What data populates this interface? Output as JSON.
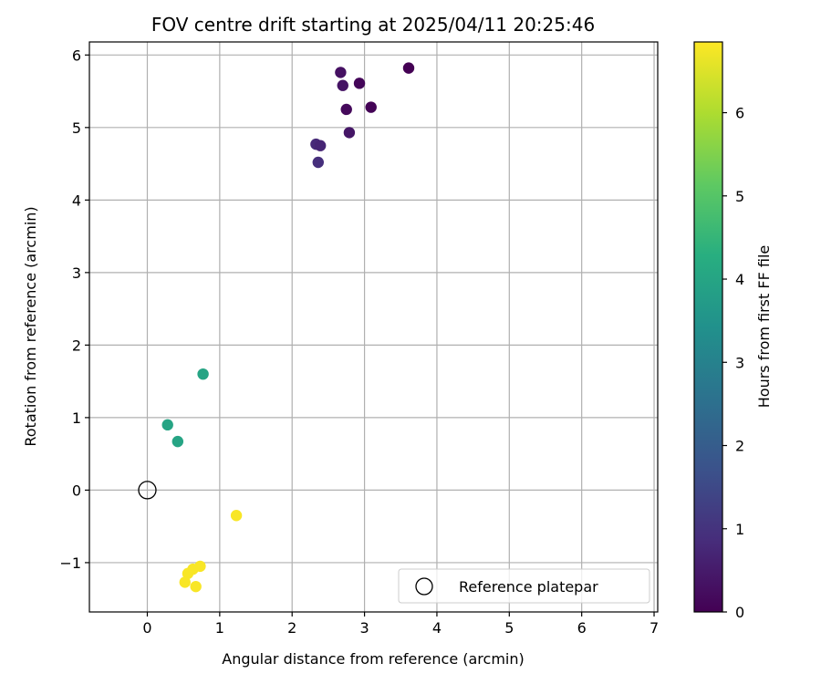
{
  "chart_data": {
    "type": "scatter",
    "title": "FOV centre drift starting at 2025/04/11 20:25:46",
    "xlabel": "Angular distance from reference (arcmin)",
    "ylabel": "Rotation from reference (arcmin)",
    "xlim": [
      -0.8,
      7.05
    ],
    "ylim": [
      -1.68,
      6.18
    ],
    "xticks": [
      0,
      1,
      2,
      3,
      4,
      5,
      6,
      7
    ],
    "yticks": [
      -1,
      0,
      1,
      2,
      3,
      4,
      5,
      6
    ],
    "grid": true,
    "legend": {
      "placement": "lower-right",
      "entries": [
        "Reference platepar"
      ]
    },
    "colorbar": {
      "label": "Hours from first FF file",
      "range": [
        0,
        6.85
      ],
      "ticks": [
        0,
        1,
        2,
        3,
        4,
        5,
        6
      ],
      "colormap": "viridis"
    },
    "reference_point": {
      "x": 0,
      "y": 0,
      "label": "Reference platepar"
    },
    "points": [
      {
        "x": 3.61,
        "y": 5.82,
        "c": 0.0
      },
      {
        "x": 2.93,
        "y": 5.61,
        "c": 0.1
      },
      {
        "x": 2.67,
        "y": 5.76,
        "c": 0.3
      },
      {
        "x": 2.7,
        "y": 5.58,
        "c": 0.35
      },
      {
        "x": 2.75,
        "y": 5.25,
        "c": 0.15
      },
      {
        "x": 3.09,
        "y": 5.28,
        "c": 0.05
      },
      {
        "x": 2.79,
        "y": 4.93,
        "c": 0.4
      },
      {
        "x": 2.33,
        "y": 4.77,
        "c": 0.8
      },
      {
        "x": 2.39,
        "y": 4.75,
        "c": 0.7
      },
      {
        "x": 2.36,
        "y": 4.52,
        "c": 0.9
      },
      {
        "x": 0.77,
        "y": 1.6,
        "c": 4.0
      },
      {
        "x": 0.28,
        "y": 0.9,
        "c": 4.0
      },
      {
        "x": 0.42,
        "y": 0.67,
        "c": 4.0
      },
      {
        "x": 1.23,
        "y": -0.35,
        "c": 6.8
      },
      {
        "x": 0.73,
        "y": -1.05,
        "c": 6.8
      },
      {
        "x": 0.63,
        "y": -1.09,
        "c": 6.8
      },
      {
        "x": 0.56,
        "y": -1.15,
        "c": 6.8
      },
      {
        "x": 0.52,
        "y": -1.27,
        "c": 6.8
      },
      {
        "x": 0.67,
        "y": -1.33,
        "c": 6.8
      }
    ]
  }
}
